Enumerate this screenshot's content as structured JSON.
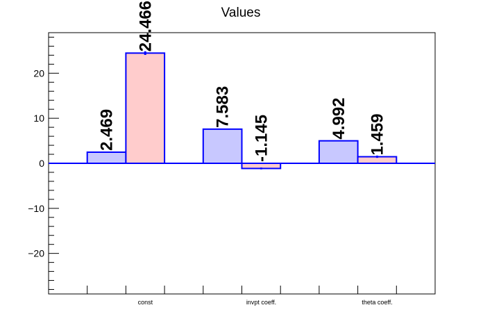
{
  "chart_data": {
    "type": "bar",
    "title": "Values",
    "categories": [
      "const",
      "invpt coeff.",
      "theta coeff."
    ],
    "series": [
      {
        "values": [
          2.469,
          7.583,
          4.992
        ],
        "errors": [
          0.0,
          0.0,
          0.0
        ],
        "color": "#c8c8ff"
      },
      {
        "values": [
          24.466,
          -1.145,
          1.459
        ],
        "errors": [
          0.4,
          0.2,
          0.25
        ],
        "color": "#ffcccc"
      }
    ],
    "value_labels": [
      [
        "2.469",
        "7.583",
        "4.992"
      ],
      [
        "24.466",
        "-1.145",
        "1.459"
      ]
    ],
    "y_ticks": [
      "−20",
      "−10",
      "0",
      "10",
      "20"
    ],
    "ylim": [
      -29,
      29
    ],
    "outline_color": "#0000ff",
    "xlabel": "",
    "ylabel": "",
    "grid": false,
    "legend": "none"
  }
}
